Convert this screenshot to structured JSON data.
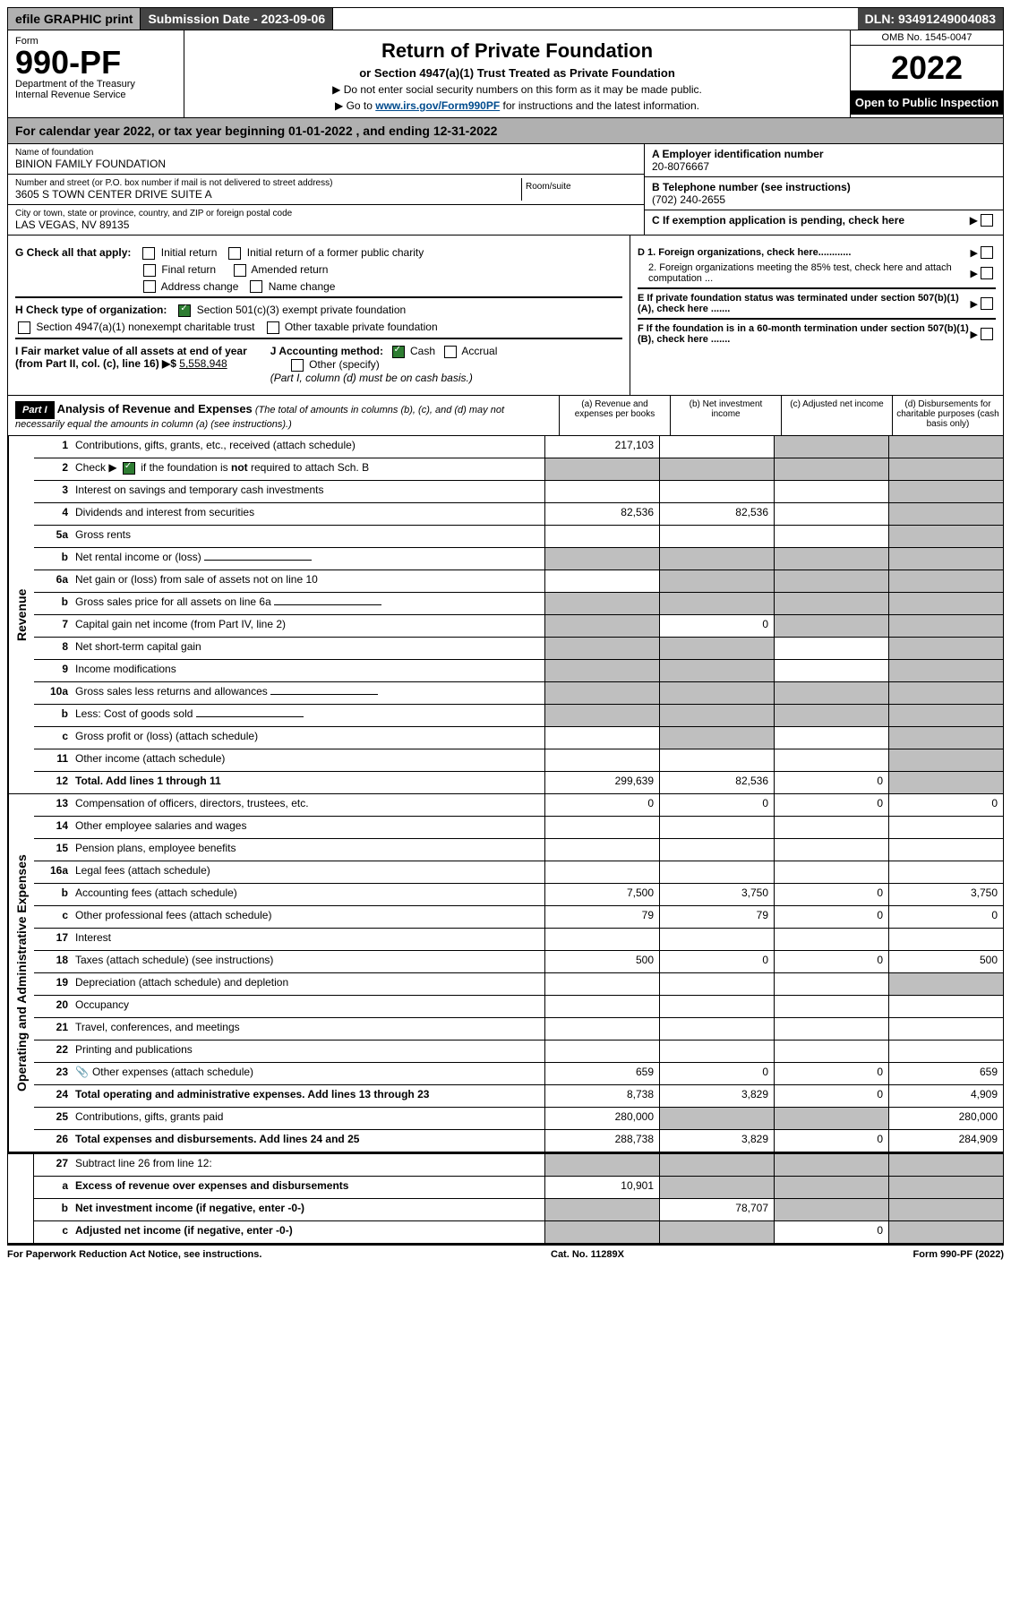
{
  "topbar": {
    "efile_label": "efile GRAPHIC print",
    "submission_label": "Submission Date - 2023-09-06",
    "dln_label": "DLN: 93491249004083"
  },
  "header": {
    "form_word": "Form",
    "form_number": "990-PF",
    "dept": "Department of the Treasury",
    "irs": "Internal Revenue Service",
    "title": "Return of Private Foundation",
    "subtitle": "or Section 4947(a)(1) Trust Treated as Private Foundation",
    "note1": "▶ Do not enter social security numbers on this form as it may be made public.",
    "note2_pre": "▶ Go to ",
    "note2_link": "www.irs.gov/Form990PF",
    "note2_post": " for instructions and the latest information.",
    "omb": "OMB No. 1545-0047",
    "year": "2022",
    "inspection": "Open to Public Inspection"
  },
  "tax_year": "For calendar year 2022, or tax year beginning 01-01-2022                                   , and ending 12-31-2022",
  "info": {
    "name_label": "Name of foundation",
    "name": "BINION FAMILY FOUNDATION",
    "addr_label": "Number and street (or P.O. box number if mail is not delivered to street address)",
    "addr": "3605 S TOWN CENTER DRIVE SUITE A",
    "room_label": "Room/suite",
    "city_label": "City or town, state or province, country, and ZIP or foreign postal code",
    "city": "LAS VEGAS, NV  89135",
    "a_label": "A Employer identification number",
    "a_val": "20-8076667",
    "b_label": "B Telephone number (see instructions)",
    "b_val": "(702) 240-2655",
    "c_label": "C If exemption application is pending, check here"
  },
  "checks": {
    "g_label": "G Check all that apply:",
    "g_initial": "Initial return",
    "g_initial_former": "Initial return of a former public charity",
    "g_final": "Final return",
    "g_amended": "Amended return",
    "g_address": "Address change",
    "g_name": "Name change",
    "h_label": "H Check type of organization:",
    "h_501c3": "Section 501(c)(3) exempt private foundation",
    "h_4947": "Section 4947(a)(1) nonexempt charitable trust",
    "h_other": "Other taxable private foundation",
    "i_label": "I Fair market value of all assets at end of year (from Part II, col. (c), line 16) ▶$",
    "i_val": "5,558,948",
    "j_label": "J Accounting method:",
    "j_cash": "Cash",
    "j_accrual": "Accrual",
    "j_other": "Other (specify)",
    "j_note": "(Part I, column (d) must be on cash basis.)",
    "d1": "D 1. Foreign organizations, check here............",
    "d2": "2. Foreign organizations meeting the 85% test, check here and attach computation ...",
    "e": "E  If private foundation status was terminated under section 507(b)(1)(A), check here .......",
    "f": "F  If the foundation is in a 60-month termination under section 507(b)(1)(B), check here .......",
    "arrow": "▶"
  },
  "part1": {
    "label": "Part I",
    "title": "Analysis of Revenue and Expenses",
    "note": " (The total of amounts in columns (b), (c), and (d) may not necessarily equal the amounts in column (a) (see instructions).)",
    "col_a": "(a)   Revenue and expenses per books",
    "col_b": "(b)   Net investment income",
    "col_c": "(c)   Adjusted net income",
    "col_d": "(d)  Disbursements for charitable purposes (cash basis only)"
  },
  "sides": {
    "revenue": "Revenue",
    "expenses": "Operating and Administrative Expenses"
  },
  "rows": [
    {
      "n": "1",
      "l": "Contributions, gifts, grants, etc., received (attach schedule)",
      "a": "217,103",
      "b": "",
      "c": "shade",
      "d": "shade"
    },
    {
      "n": "2",
      "l": "Check ▶ ☑ if the foundation is not required to attach Sch. B",
      "span": true
    },
    {
      "n": "3",
      "l": "Interest on savings and temporary cash investments",
      "a": "",
      "b": "",
      "c": "",
      "d": "shade"
    },
    {
      "n": "4",
      "l": "Dividends and interest from securities",
      "a": "82,536",
      "b": "82,536",
      "c": "",
      "d": "shade"
    },
    {
      "n": "5a",
      "l": "Gross rents",
      "a": "",
      "b": "",
      "c": "",
      "d": "shade"
    },
    {
      "n": "b",
      "l": "Net rental income or (loss)",
      "inline": true
    },
    {
      "n": "6a",
      "l": "Net gain or (loss) from sale of assets not on line 10",
      "a": "",
      "b": "shade",
      "c": "shade",
      "d": "shade"
    },
    {
      "n": "b",
      "l": "Gross sales price for all assets on line 6a",
      "inline": true
    },
    {
      "n": "7",
      "l": "Capital gain net income (from Part IV, line 2)",
      "a": "shade",
      "b": "0",
      "c": "shade",
      "d": "shade"
    },
    {
      "n": "8",
      "l": "Net short-term capital gain",
      "a": "shade",
      "b": "shade",
      "c": "",
      "d": "shade"
    },
    {
      "n": "9",
      "l": "Income modifications",
      "a": "shade",
      "b": "shade",
      "c": "",
      "d": "shade"
    },
    {
      "n": "10a",
      "l": "Gross sales less returns and allowances",
      "inline": true
    },
    {
      "n": "b",
      "l": "Less: Cost of goods sold",
      "inline": true
    },
    {
      "n": "c",
      "l": "Gross profit or (loss) (attach schedule)",
      "a": "",
      "b": "shade",
      "c": "",
      "d": "shade"
    },
    {
      "n": "11",
      "l": "Other income (attach schedule)",
      "a": "",
      "b": "",
      "c": "",
      "d": "shade"
    },
    {
      "n": "12",
      "l": "Total. Add lines 1 through 11",
      "a": "299,639",
      "b": "82,536",
      "c": "0",
      "d": "shade",
      "bold": true
    }
  ],
  "exp_rows": [
    {
      "n": "13",
      "l": "Compensation of officers, directors, trustees, etc.",
      "a": "0",
      "b": "0",
      "c": "0",
      "d": "0"
    },
    {
      "n": "14",
      "l": "Other employee salaries and wages",
      "a": "",
      "b": "",
      "c": "",
      "d": ""
    },
    {
      "n": "15",
      "l": "Pension plans, employee benefits",
      "a": "",
      "b": "",
      "c": "",
      "d": ""
    },
    {
      "n": "16a",
      "l": "Legal fees (attach schedule)",
      "a": "",
      "b": "",
      "c": "",
      "d": ""
    },
    {
      "n": "b",
      "l": "Accounting fees (attach schedule)",
      "a": "7,500",
      "b": "3,750",
      "c": "0",
      "d": "3,750"
    },
    {
      "n": "c",
      "l": "Other professional fees (attach schedule)",
      "a": "79",
      "b": "79",
      "c": "0",
      "d": "0"
    },
    {
      "n": "17",
      "l": "Interest",
      "a": "",
      "b": "",
      "c": "",
      "d": ""
    },
    {
      "n": "18",
      "l": "Taxes (attach schedule) (see instructions)",
      "a": "500",
      "b": "0",
      "c": "0",
      "d": "500"
    },
    {
      "n": "19",
      "l": "Depreciation (attach schedule) and depletion",
      "a": "",
      "b": "",
      "c": "",
      "d": "shade"
    },
    {
      "n": "20",
      "l": "Occupancy",
      "a": "",
      "b": "",
      "c": "",
      "d": ""
    },
    {
      "n": "21",
      "l": "Travel, conferences, and meetings",
      "a": "",
      "b": "",
      "c": "",
      "d": ""
    },
    {
      "n": "22",
      "l": "Printing and publications",
      "a": "",
      "b": "",
      "c": "",
      "d": ""
    },
    {
      "n": "23",
      "l": "Other expenses (attach schedule)",
      "a": "659",
      "b": "0",
      "c": "0",
      "d": "659",
      "icon": true
    },
    {
      "n": "24",
      "l": "Total operating and administrative expenses. Add lines 13 through 23",
      "a": "8,738",
      "b": "3,829",
      "c": "0",
      "d": "4,909",
      "bold": true
    },
    {
      "n": "25",
      "l": "Contributions, gifts, grants paid",
      "a": "280,000",
      "b": "shade",
      "c": "shade",
      "d": "280,000"
    },
    {
      "n": "26",
      "l": "Total expenses and disbursements. Add lines 24 and 25",
      "a": "288,738",
      "b": "3,829",
      "c": "0",
      "d": "284,909",
      "bold": true
    }
  ],
  "final_rows": [
    {
      "n": "27",
      "l": "Subtract line 26 from line 12:",
      "a": "shade",
      "b": "shade",
      "c": "shade",
      "d": "shade"
    },
    {
      "n": "a",
      "l": "Excess of revenue over expenses and disbursements",
      "a": "10,901",
      "b": "shade",
      "c": "shade",
      "d": "shade",
      "bold": true
    },
    {
      "n": "b",
      "l": "Net investment income (if negative, enter -0-)",
      "a": "shade",
      "b": "78,707",
      "c": "shade",
      "d": "shade",
      "bold": true
    },
    {
      "n": "c",
      "l": "Adjusted net income (if negative, enter -0-)",
      "a": "shade",
      "b": "shade",
      "c": "0",
      "d": "shade",
      "bold": true
    }
  ],
  "footer": {
    "left": "For Paperwork Reduction Act Notice, see instructions.",
    "center": "Cat. No. 11289X",
    "right": "Form 990-PF (2022)"
  }
}
